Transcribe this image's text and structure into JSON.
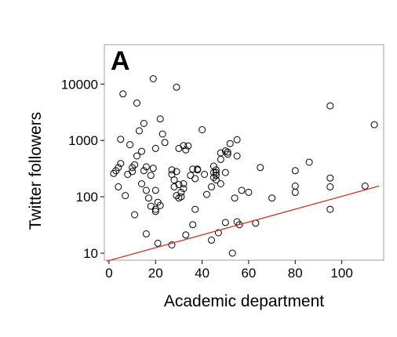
{
  "chart_data": {
    "type": "scatter",
    "panel_label": "A",
    "xlabel": "Academic department",
    "ylabel": "Twitter followers",
    "y_scale": "log",
    "xlim": [
      -2,
      118
    ],
    "ylim": [
      7.5,
      50000
    ],
    "x_ticks": [
      0,
      20,
      40,
      60,
      80,
      100
    ],
    "x_tick_labels": [
      "0",
      "20",
      "40",
      "60",
      "80",
      "100"
    ],
    "y_ticks": [
      10,
      100,
      1000,
      10000
    ],
    "y_tick_labels": [
      "10",
      "100",
      "1000",
      "10000"
    ],
    "grid": false,
    "legend": "none",
    "colors": {
      "points": "#000000",
      "fit_line": "#c0392b",
      "frame": "#a0a0a0"
    },
    "points": [
      {
        "x": 2,
        "y": 260
      },
      {
        "x": 3,
        "y": 290
      },
      {
        "x": 4,
        "y": 150
      },
      {
        "x": 4,
        "y": 330
      },
      {
        "x": 5,
        "y": 1050
      },
      {
        "x": 5,
        "y": 390
      },
      {
        "x": 6,
        "y": 6700
      },
      {
        "x": 7,
        "y": 105
      },
      {
        "x": 8,
        "y": 250
      },
      {
        "x": 9,
        "y": 840
      },
      {
        "x": 10,
        "y": 280
      },
      {
        "x": 10,
        "y": 330
      },
      {
        "x": 11,
        "y": 48
      },
      {
        "x": 11,
        "y": 370
      },
      {
        "x": 12,
        "y": 530
      },
      {
        "x": 12,
        "y": 4600
      },
      {
        "x": 13,
        "y": 1480
      },
      {
        "x": 14,
        "y": 640
      },
      {
        "x": 14,
        "y": 170
      },
      {
        "x": 15,
        "y": 2000
      },
      {
        "x": 15,
        "y": 290
      },
      {
        "x": 16,
        "y": 22
      },
      {
        "x": 16,
        "y": 340
      },
      {
        "x": 16,
        "y": 130
      },
      {
        "x": 17,
        "y": 95
      },
      {
        "x": 18,
        "y": 68
      },
      {
        "x": 18,
        "y": 240
      },
      {
        "x": 19,
        "y": 12400
      },
      {
        "x": 19,
        "y": 320
      },
      {
        "x": 20,
        "y": 130
      },
      {
        "x": 20,
        "y": 60
      },
      {
        "x": 20,
        "y": 55
      },
      {
        "x": 20,
        "y": 720
      },
      {
        "x": 21,
        "y": 15
      },
      {
        "x": 21,
        "y": 80
      },
      {
        "x": 22,
        "y": 2400
      },
      {
        "x": 22,
        "y": 70
      },
      {
        "x": 23,
        "y": 1300
      },
      {
        "x": 24,
        "y": 920
      },
      {
        "x": 27,
        "y": 14
      },
      {
        "x": 27,
        "y": 250
      },
      {
        "x": 27,
        "y": 300
      },
      {
        "x": 28,
        "y": 200
      },
      {
        "x": 28,
        "y": 150
      },
      {
        "x": 29,
        "y": 105
      },
      {
        "x": 29,
        "y": 280
      },
      {
        "x": 29,
        "y": 8800
      },
      {
        "x": 30,
        "y": 720
      },
      {
        "x": 30,
        "y": 165
      },
      {
        "x": 30,
        "y": 95
      },
      {
        "x": 31,
        "y": 120
      },
      {
        "x": 31,
        "y": 100
      },
      {
        "x": 32,
        "y": 810
      },
      {
        "x": 32,
        "y": 140
      },
      {
        "x": 32,
        "y": 170
      },
      {
        "x": 33,
        "y": 680
      },
      {
        "x": 33,
        "y": 21
      },
      {
        "x": 34,
        "y": 800
      },
      {
        "x": 35,
        "y": 240
      },
      {
        "x": 36,
        "y": 310
      },
      {
        "x": 36,
        "y": 32
      },
      {
        "x": 37,
        "y": 210
      },
      {
        "x": 37,
        "y": 60
      },
      {
        "x": 38,
        "y": 310
      },
      {
        "x": 38,
        "y": 300
      },
      {
        "x": 40,
        "y": 1550
      },
      {
        "x": 41,
        "y": 250
      },
      {
        "x": 42,
        "y": 110
      },
      {
        "x": 44,
        "y": 17
      },
      {
        "x": 44,
        "y": 150
      },
      {
        "x": 45,
        "y": 270
      },
      {
        "x": 45,
        "y": 350
      },
      {
        "x": 45,
        "y": 220
      },
      {
        "x": 46,
        "y": 300
      },
      {
        "x": 46,
        "y": 200
      },
      {
        "x": 46,
        "y": 270
      },
      {
        "x": 46,
        "y": 240
      },
      {
        "x": 47,
        "y": 23
      },
      {
        "x": 48,
        "y": 170
      },
      {
        "x": 48,
        "y": 460
      },
      {
        "x": 48,
        "y": 600
      },
      {
        "x": 50,
        "y": 650
      },
      {
        "x": 50,
        "y": 270
      },
      {
        "x": 50,
        "y": 35
      },
      {
        "x": 51,
        "y": 570
      },
      {
        "x": 51,
        "y": 620
      },
      {
        "x": 52,
        "y": 880
      },
      {
        "x": 53,
        "y": 10
      },
      {
        "x": 54,
        "y": 95
      },
      {
        "x": 55,
        "y": 1030
      },
      {
        "x": 55,
        "y": 530
      },
      {
        "x": 55,
        "y": 36
      },
      {
        "x": 56,
        "y": 32
      },
      {
        "x": 57,
        "y": 130
      },
      {
        "x": 60,
        "y": 120
      },
      {
        "x": 63,
        "y": 34
      },
      {
        "x": 65,
        "y": 330
      },
      {
        "x": 70,
        "y": 95
      },
      {
        "x": 80,
        "y": 290
      },
      {
        "x": 80,
        "y": 155
      },
      {
        "x": 80,
        "y": 120
      },
      {
        "x": 86,
        "y": 410
      },
      {
        "x": 95,
        "y": 4100
      },
      {
        "x": 95,
        "y": 215
      },
      {
        "x": 95,
        "y": 150
      },
      {
        "x": 95,
        "y": 60
      },
      {
        "x": 110,
        "y": 155
      },
      {
        "x": 114,
        "y": 1900
      }
    ],
    "fit_line": {
      "x": [
        -1,
        116
      ],
      "y": [
        7.2,
        155
      ]
    }
  }
}
